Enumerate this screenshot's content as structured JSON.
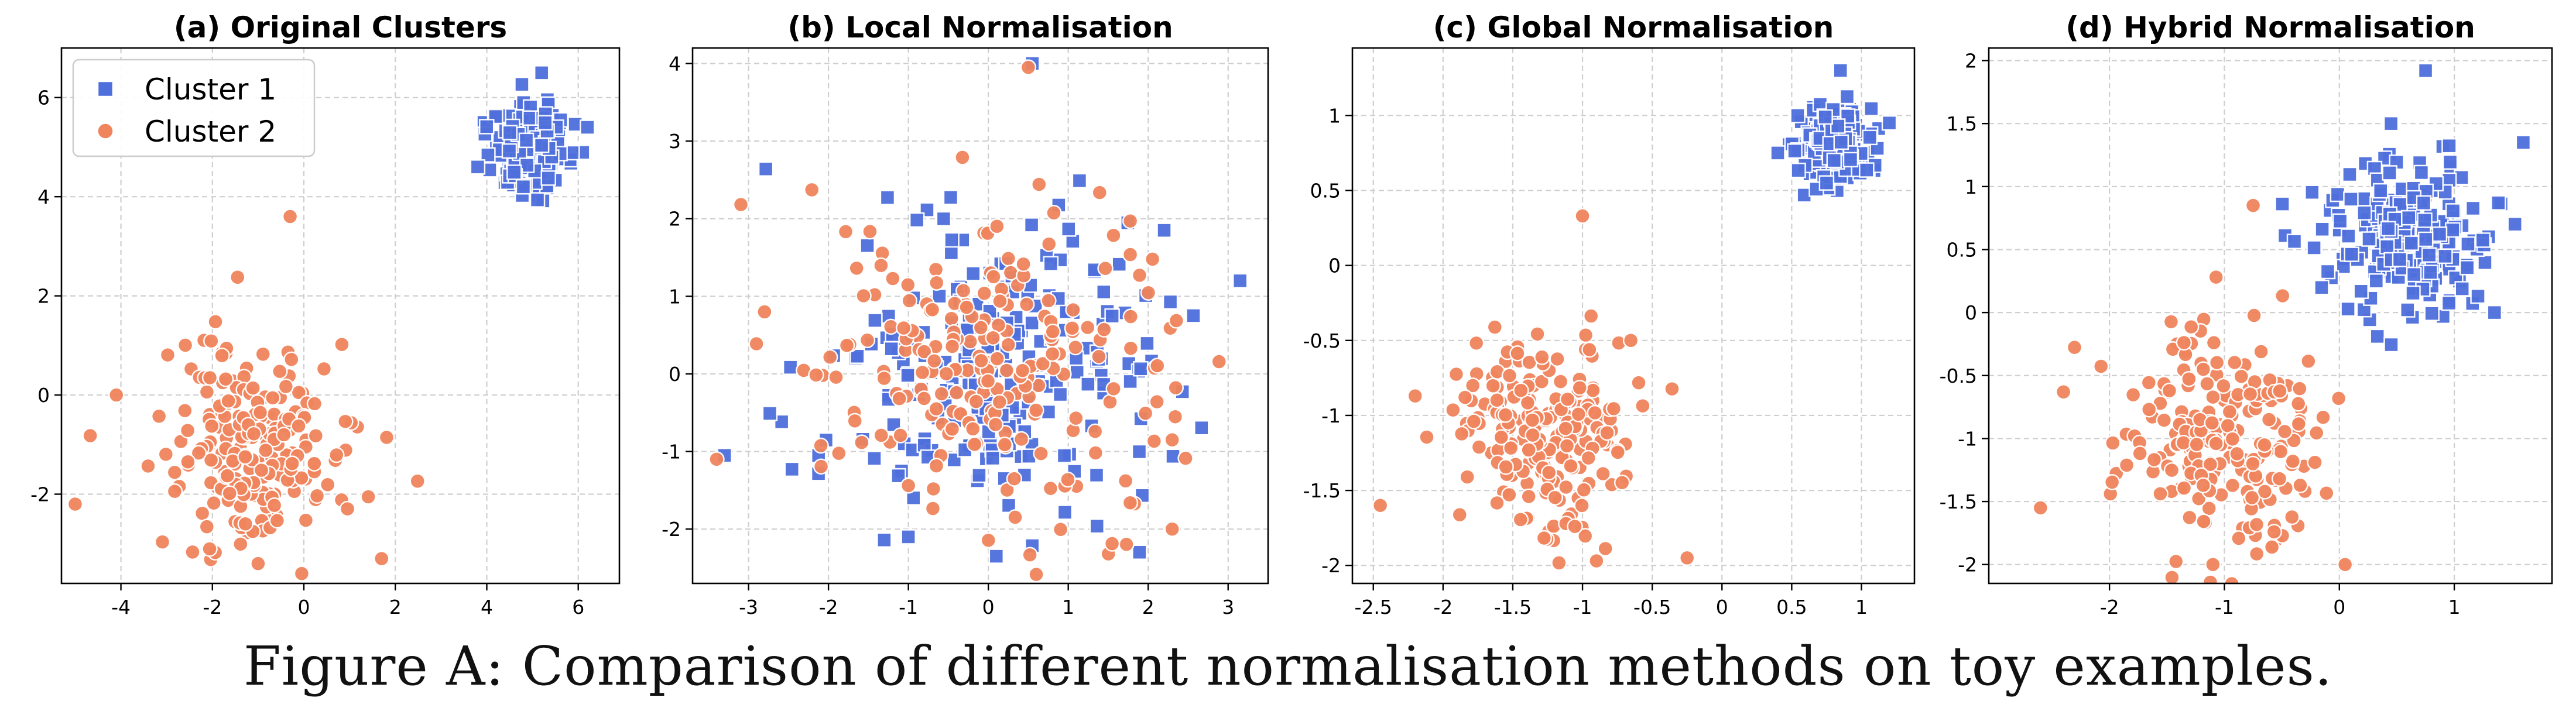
{
  "colors": {
    "cluster1": "#4e6fdc",
    "cluster2": "#f0845c"
  },
  "figure_caption": "Figure A: Comparison of different normalisation methods on toy examples.",
  "chart_data": [
    {
      "type": "scatter",
      "title": "(a) Original Clusters",
      "xlim": [
        -5.3,
        6.9
      ],
      "ylim": [
        -3.8,
        7.0
      ],
      "xticks": [
        -4,
        -2,
        0,
        2,
        4,
        6
      ],
      "yticks": [
        -2,
        0,
        2,
        4,
        6
      ],
      "grid": true,
      "legend": "top-left",
      "series": [
        {
          "name": "Cluster 1",
          "marker": "square",
          "color": "#4e6fdc",
          "center": [
            5.0,
            5.0
          ],
          "spread": [
            0.42,
            0.42
          ],
          "count": 220,
          "outliers": [
            [
              5.2,
              6.5
            ],
            [
              3.8,
              4.6
            ],
            [
              6.2,
              5.4
            ],
            [
              4.8,
              4.2
            ]
          ]
        },
        {
          "name": "Cluster 2",
          "marker": "circle",
          "color": "#f0845c",
          "center": [
            -1.0,
            -1.0
          ],
          "spread": [
            1.0,
            1.0
          ],
          "count": 220,
          "outliers": [
            [
              -0.3,
              3.6
            ],
            [
              -5.0,
              -2.2
            ],
            [
              -4.1,
              0.0
            ],
            [
              1.7,
              -3.3
            ],
            [
              -1.0,
              -3.4
            ]
          ]
        }
      ]
    },
    {
      "type": "scatter",
      "title": "(b) Local Normalisation",
      "xlim": [
        -3.7,
        3.5
      ],
      "ylim": [
        -2.7,
        4.2
      ],
      "xticks": [
        -3,
        -2,
        -1,
        0,
        1,
        2,
        3
      ],
      "yticks": [
        -2,
        -1,
        0,
        1,
        2,
        3,
        4
      ],
      "grid": true,
      "legend": "none",
      "series": [
        {
          "name": "Cluster 1",
          "marker": "square",
          "color": "#4e6fdc",
          "center": [
            0.0,
            0.0
          ],
          "spread": [
            1.0,
            1.0
          ],
          "count": 220,
          "outliers": [
            [
              0.55,
              4.0
            ],
            [
              3.15,
              1.2
            ],
            [
              -3.3,
              -1.05
            ],
            [
              2.2,
              1.85
            ],
            [
              0.1,
              -2.35
            ],
            [
              -1.0,
              -2.1
            ]
          ]
        },
        {
          "name": "Cluster 2",
          "marker": "circle",
          "color": "#f0845c",
          "center": [
            0.0,
            0.0
          ],
          "spread": [
            1.0,
            1.0
          ],
          "count": 220,
          "outliers": [
            [
              0.5,
              3.95
            ],
            [
              -3.4,
              -1.1
            ],
            [
              -2.8,
              0.8
            ],
            [
              2.3,
              -0.85
            ],
            [
              2.3,
              -2.0
            ]
          ]
        }
      ]
    },
    {
      "type": "scatter",
      "title": "(c) Global Normalisation",
      "xlim": [
        -2.65,
        1.38
      ],
      "ylim": [
        -2.12,
        1.45
      ],
      "xticks": [
        -2.5,
        -2.0,
        -1.5,
        -1.0,
        -0.5,
        0.0,
        0.5,
        1.0
      ],
      "yticks": [
        -2.0,
        -1.5,
        -1.0,
        -0.5,
        0.0,
        0.5,
        1.0
      ],
      "grid": true,
      "legend": "none",
      "series": [
        {
          "name": "Cluster 1",
          "marker": "square",
          "color": "#4e6fdc",
          "center": [
            0.8,
            0.8
          ],
          "spread": [
            0.13,
            0.13
          ],
          "count": 220,
          "outliers": [
            [
              0.85,
              1.3
            ],
            [
              0.4,
              0.75
            ],
            [
              1.2,
              0.95
            ],
            [
              0.75,
              0.55
            ]
          ]
        },
        {
          "name": "Cluster 2",
          "marker": "circle",
          "color": "#f0845c",
          "center": [
            -1.25,
            -1.15
          ],
          "spread": [
            0.32,
            0.32
          ],
          "count": 220,
          "outliers": [
            [
              -1.0,
              0.33
            ],
            [
              -2.45,
              -1.6
            ],
            [
              -2.2,
              -0.87
            ],
            [
              -0.25,
              -1.95
            ],
            [
              -0.9,
              -1.97
            ]
          ]
        }
      ]
    },
    {
      "type": "scatter",
      "title": "(d) Hybrid Normalisation",
      "xlim": [
        -3.05,
        1.85
      ],
      "ylim": [
        -2.15,
        2.1
      ],
      "xticks": [
        -2,
        -1,
        0,
        1
      ],
      "yticks": [
        -2.0,
        -1.5,
        -1.0,
        -0.5,
        0.0,
        0.5,
        1.0,
        1.5,
        2.0
      ],
      "grid": true,
      "legend": "none",
      "series": [
        {
          "name": "Cluster 1",
          "marker": "square",
          "color": "#4e6fdc",
          "center": [
            0.6,
            0.6
          ],
          "spread": [
            0.38,
            0.3
          ],
          "count": 220,
          "outliers": [
            [
              0.75,
              1.92
            ],
            [
              1.6,
              1.35
            ],
            [
              0.1,
              0.9
            ],
            [
              1.35,
              0.0
            ],
            [
              0.45,
              1.5
            ]
          ]
        },
        {
          "name": "Cluster 2",
          "marker": "circle",
          "color": "#f0845c",
          "center": [
            -1.0,
            -1.0
          ],
          "spread": [
            0.45,
            0.45
          ],
          "count": 220,
          "outliers": [
            [
              -0.75,
              0.85
            ],
            [
              -2.6,
              -1.55
            ],
            [
              -2.4,
              -0.63
            ],
            [
              0.05,
              -2.0
            ],
            [
              -1.1,
              -2.0
            ]
          ]
        }
      ]
    }
  ]
}
